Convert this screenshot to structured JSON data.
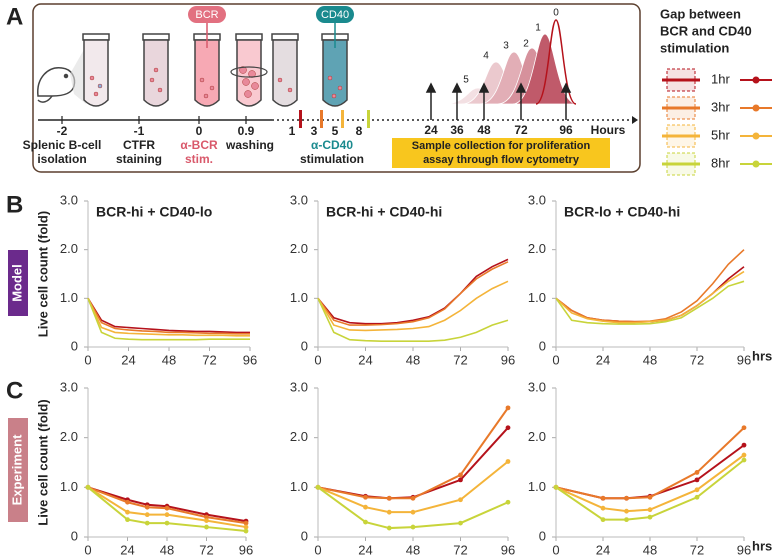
{
  "panel_labels": [
    "A",
    "B",
    "C"
  ],
  "row_tags": [
    {
      "text": "Model",
      "color": "#6b2a8c"
    },
    {
      "text": "Experiment",
      "color": "#c98089"
    }
  ],
  "schematic": {
    "pills": [
      "BCR",
      "CD40"
    ],
    "time_labels": [
      "-2",
      "-1",
      "0",
      "0.9",
      "1",
      "3",
      "5",
      "8",
      "24",
      "36",
      "48",
      "72",
      "96",
      "Hours"
    ],
    "steps": [
      [
        "Splenic B-cell",
        "isolation"
      ],
      [
        "CTFR",
        "staining"
      ],
      [
        "α-BCR",
        "stim."
      ],
      [
        "washing"
      ],
      [
        "α-CD40",
        "stimulation"
      ]
    ],
    "sample_box": [
      "Sample collection for proliferation",
      "assay through flow cytometry"
    ],
    "peak_labels": [
      "5",
      "4",
      "3",
      "2",
      "1",
      "0"
    ]
  },
  "legend": {
    "title": [
      "Gap between",
      "BCR and CD40",
      "stimulation"
    ],
    "entries": [
      {
        "name": "1hr",
        "color": "#b5121b"
      },
      {
        "name": "3hr",
        "color": "#e8792a"
      },
      {
        "name": "5hr",
        "color": "#f4b43a"
      },
      {
        "name": "8hr",
        "color": "#c8d43a"
      }
    ]
  },
  "chart_data": [
    {
      "type": "line",
      "title": "BCR-hi + CD40-lo",
      "ylabel": "Live cell count (fold)",
      "x": [
        0,
        8,
        16,
        24,
        32,
        40,
        48,
        56,
        64,
        72,
        80,
        88,
        96
      ],
      "series": [
        {
          "color": "#b5121b",
          "values": [
            1.0,
            0.55,
            0.42,
            0.4,
            0.38,
            0.36,
            0.34,
            0.33,
            0.32,
            0.32,
            0.31,
            0.3,
            0.3
          ]
        },
        {
          "color": "#e8792a",
          "values": [
            1.0,
            0.5,
            0.38,
            0.35,
            0.33,
            0.32,
            0.3,
            0.3,
            0.29,
            0.28,
            0.28,
            0.27,
            0.27
          ]
        },
        {
          "color": "#f4b43a",
          "values": [
            1.0,
            0.4,
            0.3,
            0.28,
            0.27,
            0.26,
            0.25,
            0.25,
            0.24,
            0.24,
            0.24,
            0.23,
            0.23
          ]
        },
        {
          "color": "#c8d43a",
          "values": [
            1.0,
            0.3,
            0.18,
            0.16,
            0.15,
            0.15,
            0.15,
            0.15,
            0.15,
            0.16,
            0.16,
            0.16,
            0.16
          ]
        }
      ],
      "xlim": [
        0,
        96
      ],
      "ylim": [
        0,
        3
      ],
      "xticks": [
        0,
        24,
        48,
        72,
        96
      ],
      "yticks": [
        0,
        {
          "value": 1,
          "label": "1.0"
        },
        {
          "value": 2,
          "label": "2.0"
        },
        {
          "value": 3,
          "label": "3.0"
        }
      ],
      "markers": false
    },
    {
      "type": "line",
      "title": "BCR-hi + CD40-hi",
      "x": [
        0,
        8,
        16,
        24,
        32,
        40,
        48,
        56,
        64,
        72,
        80,
        88,
        96
      ],
      "series": [
        {
          "color": "#b5121b",
          "values": [
            1.0,
            0.6,
            0.5,
            0.48,
            0.48,
            0.5,
            0.55,
            0.62,
            0.8,
            1.1,
            1.45,
            1.65,
            1.8
          ]
        },
        {
          "color": "#e8792a",
          "values": [
            1.0,
            0.55,
            0.45,
            0.45,
            0.46,
            0.48,
            0.52,
            0.6,
            0.78,
            1.1,
            1.4,
            1.6,
            1.75
          ]
        },
        {
          "color": "#f4b43a",
          "values": [
            1.0,
            0.45,
            0.35,
            0.34,
            0.35,
            0.36,
            0.38,
            0.42,
            0.55,
            0.75,
            1.0,
            1.2,
            1.35
          ]
        },
        {
          "color": "#c8d43a",
          "values": [
            1.0,
            0.3,
            0.15,
            0.13,
            0.12,
            0.12,
            0.12,
            0.12,
            0.14,
            0.2,
            0.3,
            0.45,
            0.55
          ]
        }
      ],
      "xlim": [
        0,
        96
      ],
      "ylim": [
        0,
        3
      ],
      "xticks": [
        0,
        24,
        48,
        72,
        96
      ],
      "yticks": [
        0,
        {
          "value": 1,
          "label": "1.0"
        },
        {
          "value": 2,
          "label": "2.0"
        },
        {
          "value": 3,
          "label": "3.0"
        }
      ],
      "markers": false
    },
    {
      "type": "line",
      "title": "BCR-lo + CD40-hi",
      "x_unit": "hrs",
      "x": [
        0,
        8,
        16,
        24,
        32,
        40,
        48,
        56,
        64,
        72,
        80,
        88,
        96
      ],
      "series": [
        {
          "color": "#b5121b",
          "values": [
            1.0,
            0.75,
            0.6,
            0.55,
            0.53,
            0.52,
            0.52,
            0.55,
            0.65,
            0.85,
            1.1,
            1.4,
            1.65
          ]
        },
        {
          "color": "#e8792a",
          "values": [
            1.0,
            0.75,
            0.6,
            0.55,
            0.53,
            0.52,
            0.53,
            0.58,
            0.72,
            0.95,
            1.3,
            1.7,
            2.0
          ]
        },
        {
          "color": "#f4b43a",
          "values": [
            1.0,
            0.7,
            0.58,
            0.53,
            0.5,
            0.5,
            0.52,
            0.55,
            0.65,
            0.85,
            1.1,
            1.35,
            1.55
          ]
        },
        {
          "color": "#c8d43a",
          "values": [
            1.0,
            0.55,
            0.5,
            0.48,
            0.47,
            0.47,
            0.48,
            0.52,
            0.6,
            0.8,
            1.0,
            1.25,
            1.35
          ]
        }
      ],
      "xlim": [
        0,
        96
      ],
      "ylim": [
        0,
        3
      ],
      "xticks": [
        0,
        24,
        48,
        72,
        96
      ],
      "yticks": [
        0,
        {
          "value": 1,
          "label": "1.0"
        },
        {
          "value": 2,
          "label": "2.0"
        },
        {
          "value": 3,
          "label": "3.0"
        }
      ],
      "markers": false
    },
    {
      "type": "line",
      "ylabel": "Live cell count (fold)",
      "x": [
        0,
        24,
        36,
        48,
        72,
        96
      ],
      "series": [
        {
          "color": "#b5121b",
          "values": [
            1.0,
            0.75,
            0.65,
            0.62,
            0.45,
            0.32
          ]
        },
        {
          "color": "#e8792a",
          "values": [
            1.0,
            0.7,
            0.6,
            0.58,
            0.4,
            0.28
          ]
        },
        {
          "color": "#f4b43a",
          "values": [
            1.0,
            0.5,
            0.45,
            0.45,
            0.33,
            0.2
          ]
        },
        {
          "color": "#c8d43a",
          "values": [
            1.0,
            0.35,
            0.28,
            0.28,
            0.2,
            0.12
          ]
        }
      ],
      "xlim": [
        0,
        96
      ],
      "ylim": [
        0,
        3
      ],
      "xticks": [
        0,
        24,
        48,
        72,
        96
      ],
      "yticks": [
        0,
        {
          "value": 1,
          "label": "1.0"
        },
        {
          "value": 2,
          "label": "2.0"
        },
        {
          "value": 3,
          "label": "3.0"
        }
      ],
      "markers": true
    },
    {
      "type": "line",
      "x": [
        0,
        24,
        36,
        48,
        72,
        96
      ],
      "series": [
        {
          "color": "#b5121b",
          "values": [
            1.0,
            0.82,
            0.78,
            0.8,
            1.15,
            2.2
          ]
        },
        {
          "color": "#e8792a",
          "values": [
            1.0,
            0.8,
            0.78,
            0.78,
            1.25,
            2.6
          ]
        },
        {
          "color": "#f4b43a",
          "values": [
            1.0,
            0.6,
            0.5,
            0.5,
            0.75,
            1.52
          ]
        },
        {
          "color": "#c8d43a",
          "values": [
            1.0,
            0.3,
            0.18,
            0.2,
            0.28,
            0.7
          ]
        }
      ],
      "xlim": [
        0,
        96
      ],
      "ylim": [
        0,
        3
      ],
      "xticks": [
        0,
        24,
        48,
        72,
        96
      ],
      "yticks": [
        0,
        {
          "value": 1,
          "label": "1.0"
        },
        {
          "value": 2,
          "label": "2.0"
        },
        {
          "value": 3,
          "label": "3.0"
        }
      ],
      "markers": true
    },
    {
      "type": "line",
      "x_unit": "hrs",
      "x": [
        0,
        24,
        36,
        48,
        72,
        96
      ],
      "series": [
        {
          "color": "#b5121b",
          "values": [
            1.0,
            0.78,
            0.78,
            0.82,
            1.15,
            1.85
          ]
        },
        {
          "color": "#e8792a",
          "values": [
            1.0,
            0.78,
            0.78,
            0.8,
            1.3,
            2.2
          ]
        },
        {
          "color": "#f4b43a",
          "values": [
            1.0,
            0.58,
            0.52,
            0.55,
            0.95,
            1.65
          ]
        },
        {
          "color": "#c8d43a",
          "values": [
            1.0,
            0.35,
            0.35,
            0.4,
            0.8,
            1.55
          ]
        }
      ],
      "xlim": [
        0,
        96
      ],
      "ylim": [
        0,
        3
      ],
      "xticks": [
        0,
        24,
        48,
        72,
        96
      ],
      "yticks": [
        0,
        {
          "value": 1,
          "label": "1.0"
        },
        {
          "value": 2,
          "label": "2.0"
        },
        {
          "value": 3,
          "label": "3.0"
        }
      ],
      "markers": true
    }
  ]
}
